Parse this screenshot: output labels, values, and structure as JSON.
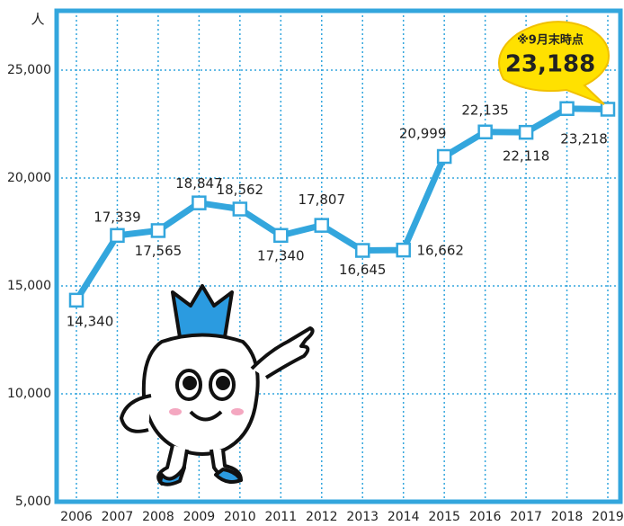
{
  "chart_data": {
    "type": "line",
    "unit": "人",
    "categories": [
      "2006",
      "2007",
      "2008",
      "2009",
      "2010",
      "2011",
      "2012",
      "2013",
      "2014",
      "2015",
      "2016",
      "2017",
      "2018",
      "2019"
    ],
    "values": [
      14340,
      17339,
      17565,
      18847,
      18562,
      17340,
      17807,
      16645,
      16662,
      20999,
      22135,
      22118,
      23218,
      23188
    ],
    "value_labels": [
      "14,340",
      "17,339",
      "17,565",
      "18,847",
      "18,562",
      "17,340",
      "17,807",
      "16,645",
      "16,662",
      "20,999",
      "22,135",
      "22,118",
      "23,218",
      "23,188"
    ],
    "annotation": "※9月末時点",
    "color": "#33a6dd",
    "ylim": [
      5000,
      27750
    ],
    "yticks": [
      {
        "value": 5000,
        "label": "5,000"
      },
      {
        "value": 10000,
        "label": "10,000"
      },
      {
        "value": 15000,
        "label": "15,000"
      },
      {
        "value": 20000,
        "label": "20,000"
      },
      {
        "value": 25000,
        "label": "25,000"
      }
    ],
    "grid": true
  }
}
